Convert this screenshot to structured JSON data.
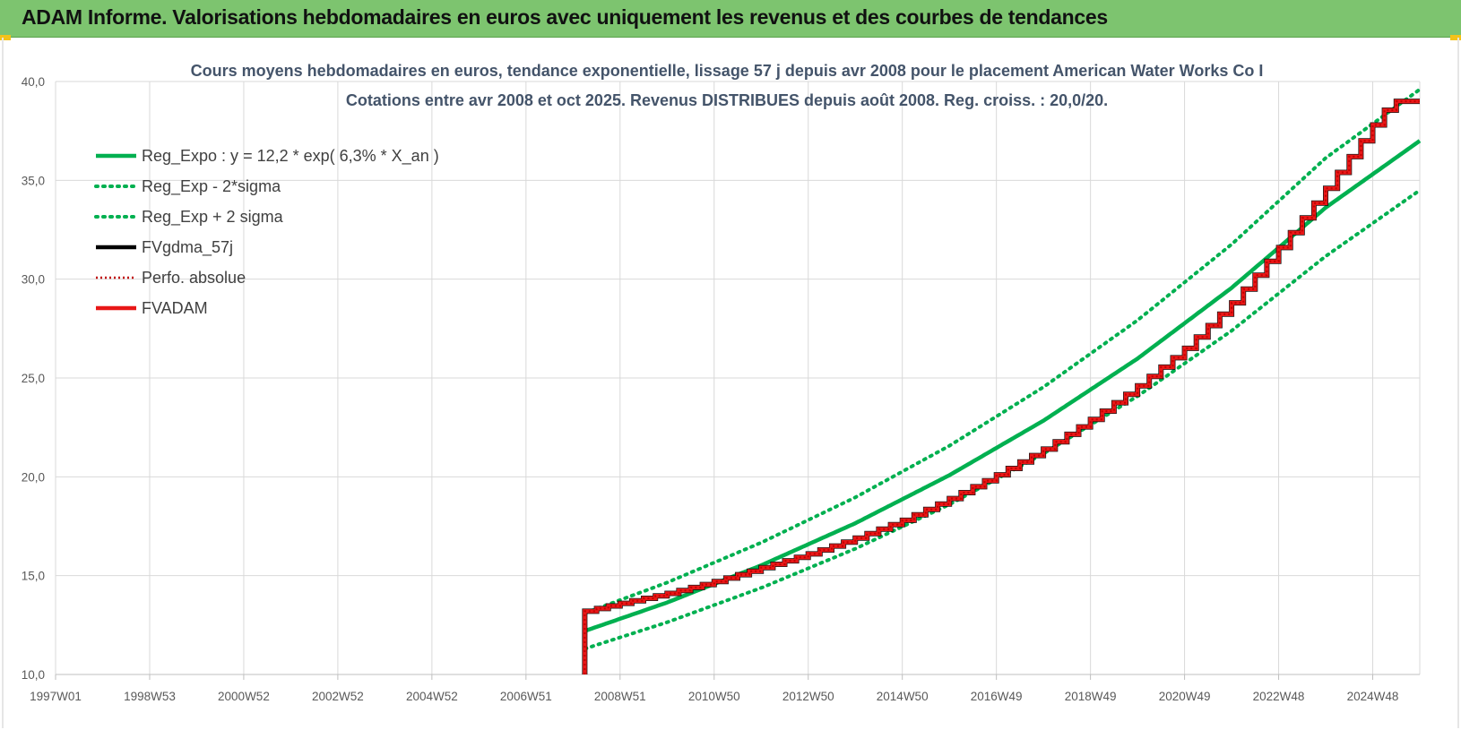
{
  "header": {
    "title": "ADAM Informe. Valorisations hebdomadaires en euros avec uniquement les revenus et des courbes de tendances"
  },
  "colors": {
    "banner": "#7dc46f",
    "trend": "#00b050",
    "gdma": "#000000",
    "adam": "#e81717",
    "perfo": "#c00000"
  },
  "chart_data": {
    "type": "line",
    "title_lines": [
      "Cours moyens hebdomadaires en euros, tendance exponentielle, lissage 57 j depuis avr 2008 pour le placement American Water Works Co I",
      "Cotations entre avr 2008 et oct 2025. Revenus DISTRIBUES depuis août 2008. Reg. croiss. : 20,0/20."
    ],
    "x_ticks": [
      "1997W01",
      "1998W53",
      "2000W52",
      "2002W52",
      "2004W52",
      "2006W51",
      "2008W51",
      "2010W50",
      "2012W50",
      "2014W50",
      "2016W49",
      "2018W49",
      "2020W49",
      "2022W48",
      "2024W48"
    ],
    "x_tick_years": [
      1997.0,
      1999.0,
      2001.0,
      2003.0,
      2005.0,
      2007.0,
      2009.0,
      2011.0,
      2013.0,
      2015.0,
      2017.0,
      2019.0,
      2021.0,
      2023.0,
      2025.0
    ],
    "x_range": [
      1997.0,
      2026.0
    ],
    "y_ticks": [
      "10,0",
      "15,0",
      "20,0",
      "25,0",
      "30,0",
      "35,0",
      "40,0"
    ],
    "ylim": [
      10,
      40
    ],
    "grid": true,
    "legend_position": "top-left",
    "start_year": 2008.25,
    "end_year": 2026.0,
    "series": [
      {
        "name": "Reg_Expo : y = 12,2 * exp( 6,3% *  X_an )",
        "key": "trend",
        "style": "solid",
        "color": "#00b050",
        "x": [
          2008.25,
          2010,
          2012,
          2014,
          2016,
          2018,
          2020,
          2022,
          2024,
          2026
        ],
        "y": [
          12.2,
          13.64,
          15.52,
          17.65,
          20.08,
          22.84,
          25.98,
          29.56,
          33.62,
          37.0
        ]
      },
      {
        "name": "Reg_Exp - 2*sigma",
        "key": "low",
        "style": "dotted",
        "color": "#00b050",
        "x": [
          2008.25,
          2010,
          2012,
          2014,
          2016,
          2018,
          2020,
          2022,
          2024,
          2026
        ],
        "y": [
          11.3,
          12.64,
          14.38,
          16.36,
          18.6,
          21.17,
          24.08,
          27.39,
          31.16,
          34.5
        ]
      },
      {
        "name": "Reg_Exp + 2 sigma",
        "key": "high",
        "style": "dotted",
        "color": "#00b050",
        "x": [
          2008.25,
          2010,
          2012,
          2014,
          2016,
          2018,
          2020,
          2022,
          2024,
          2026
        ],
        "y": [
          13.1,
          14.65,
          16.67,
          18.96,
          21.57,
          24.54,
          27.92,
          31.76,
          36.13,
          39.6
        ]
      },
      {
        "name": "FVgdma_57j",
        "key": "gdma",
        "style": "solid",
        "color": "#000000"
      },
      {
        "name": "Perfo. absolue",
        "key": "perfo",
        "style": "dotted",
        "color": "#c00000"
      },
      {
        "name": "FVADAM",
        "key": "adam",
        "style": "solid",
        "color": "#e81717",
        "x": [
          2008.25,
          2008.25,
          2009,
          2010,
          2011,
          2012,
          2013,
          2014,
          2015,
          2016,
          2017,
          2018,
          2019,
          2020,
          2021,
          2022,
          2023,
          2024,
          2025,
          2025.4,
          2026
        ],
        "y": [
          10.0,
          13.2,
          13.6,
          14.1,
          14.7,
          15.4,
          16.1,
          16.9,
          17.8,
          18.9,
          20.1,
          21.4,
          22.9,
          24.6,
          26.5,
          28.8,
          31.6,
          34.6,
          37.8,
          39.0,
          39.0
        ]
      }
    ]
  }
}
